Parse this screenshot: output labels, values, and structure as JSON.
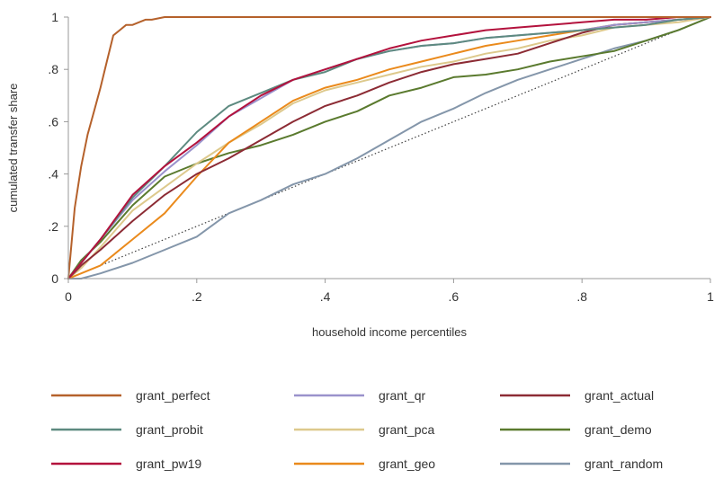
{
  "chart_data": {
    "type": "line",
    "title": "",
    "xlabel": "household income percentiles",
    "ylabel": "cumulated transfer share",
    "xlim": [
      0,
      1
    ],
    "ylim": [
      0,
      1
    ],
    "x_ticks": [
      0,
      0.2,
      0.4,
      0.6,
      0.8,
      1
    ],
    "x_tick_labels": [
      "0",
      ".2",
      ".4",
      ".6",
      ".8",
      "1"
    ],
    "y_ticks": [
      0,
      0.2,
      0.4,
      0.6,
      0.8,
      1
    ],
    "y_tick_labels": [
      "0",
      ".2",
      ".4",
      ".6",
      ".8",
      "1"
    ],
    "grid": false,
    "legend_position": "bottom",
    "reference_line": {
      "style": "dotted",
      "color": "#404040",
      "x": [
        0,
        1
      ],
      "y": [
        0,
        1
      ]
    },
    "series": [
      {
        "name": "grant_perfect",
        "color": "#b5612b",
        "x": [
          0,
          0.01,
          0.02,
          0.03,
          0.04,
          0.05,
          0.06,
          0.07,
          0.08,
          0.09,
          0.1,
          0.11,
          0.12,
          0.13,
          0.15,
          0.16,
          1
        ],
        "y": [
          0,
          0.27,
          0.43,
          0.55,
          0.64,
          0.73,
          0.83,
          0.93,
          0.95,
          0.97,
          0.97,
          0.98,
          0.99,
          0.99,
          1,
          1,
          1
        ]
      },
      {
        "name": "grant_qr",
        "color": "#9a92cc",
        "x": [
          0,
          0.02,
          0.05,
          0.1,
          0.15,
          0.2,
          0.25,
          0.3,
          0.35,
          0.4,
          0.45,
          0.5,
          0.55,
          0.6,
          0.65,
          0.7,
          0.75,
          0.8,
          0.85,
          0.9,
          0.95,
          1
        ],
        "y": [
          0,
          0.06,
          0.15,
          0.3,
          0.41,
          0.51,
          0.62,
          0.69,
          0.76,
          0.8,
          0.84,
          0.87,
          0.89,
          0.9,
          0.92,
          0.93,
          0.94,
          0.95,
          0.97,
          0.98,
          0.99,
          1
        ]
      },
      {
        "name": "grant_actual",
        "color": "#8c2b34",
        "x": [
          0,
          0.02,
          0.05,
          0.1,
          0.15,
          0.2,
          0.25,
          0.3,
          0.35,
          0.4,
          0.45,
          0.5,
          0.55,
          0.6,
          0.65,
          0.7,
          0.75,
          0.8,
          0.85,
          0.9,
          0.95,
          1
        ],
        "y": [
          0,
          0.05,
          0.11,
          0.22,
          0.32,
          0.4,
          0.46,
          0.53,
          0.6,
          0.66,
          0.7,
          0.75,
          0.79,
          0.82,
          0.84,
          0.86,
          0.9,
          0.94,
          0.97,
          0.98,
          0.99,
          1
        ]
      },
      {
        "name": "grant_probit",
        "color": "#5d8a80",
        "x": [
          0,
          0.02,
          0.05,
          0.1,
          0.15,
          0.2,
          0.25,
          0.3,
          0.35,
          0.4,
          0.45,
          0.5,
          0.55,
          0.6,
          0.65,
          0.7,
          0.75,
          0.8,
          0.85,
          0.9,
          0.95,
          1
        ],
        "y": [
          0,
          0.06,
          0.15,
          0.31,
          0.43,
          0.56,
          0.66,
          0.71,
          0.76,
          0.79,
          0.84,
          0.87,
          0.89,
          0.9,
          0.92,
          0.93,
          0.94,
          0.95,
          0.96,
          0.97,
          0.99,
          1
        ]
      },
      {
        "name": "grant_pca",
        "color": "#ddc98c",
        "x": [
          0,
          0.02,
          0.05,
          0.1,
          0.15,
          0.2,
          0.25,
          0.3,
          0.35,
          0.4,
          0.45,
          0.5,
          0.55,
          0.6,
          0.65,
          0.7,
          0.75,
          0.8,
          0.85,
          0.9,
          0.95,
          1
        ],
        "y": [
          0,
          0.04,
          0.12,
          0.26,
          0.35,
          0.44,
          0.52,
          0.59,
          0.67,
          0.72,
          0.75,
          0.78,
          0.81,
          0.83,
          0.86,
          0.88,
          0.91,
          0.93,
          0.96,
          0.97,
          0.98,
          1
        ]
      },
      {
        "name": "grant_demo",
        "color": "#5a7a2e",
        "x": [
          0,
          0.02,
          0.05,
          0.1,
          0.15,
          0.2,
          0.25,
          0.3,
          0.35,
          0.4,
          0.45,
          0.5,
          0.55,
          0.6,
          0.65,
          0.7,
          0.75,
          0.8,
          0.85,
          0.9,
          0.95,
          1
        ],
        "y": [
          0,
          0.07,
          0.14,
          0.28,
          0.39,
          0.44,
          0.48,
          0.51,
          0.55,
          0.6,
          0.64,
          0.7,
          0.73,
          0.77,
          0.78,
          0.8,
          0.83,
          0.85,
          0.87,
          0.91,
          0.95,
          1
        ]
      },
      {
        "name": "grant_pw19",
        "color": "#b3123d",
        "x": [
          0,
          0.02,
          0.05,
          0.1,
          0.15,
          0.2,
          0.25,
          0.3,
          0.35,
          0.4,
          0.45,
          0.5,
          0.55,
          0.6,
          0.65,
          0.7,
          0.75,
          0.8,
          0.85,
          0.9,
          0.95,
          1
        ],
        "y": [
          0,
          0.06,
          0.15,
          0.32,
          0.43,
          0.52,
          0.62,
          0.7,
          0.76,
          0.8,
          0.84,
          0.88,
          0.91,
          0.93,
          0.95,
          0.96,
          0.97,
          0.98,
          0.99,
          0.99,
          1,
          1
        ]
      },
      {
        "name": "grant_geo",
        "color": "#ea8a1c",
        "x": [
          0,
          0.02,
          0.05,
          0.1,
          0.15,
          0.2,
          0.25,
          0.3,
          0.35,
          0.4,
          0.45,
          0.5,
          0.55,
          0.6,
          0.65,
          0.7,
          0.75,
          0.8,
          0.85,
          0.9,
          0.95,
          1
        ],
        "y": [
          0,
          0.02,
          0.05,
          0.15,
          0.25,
          0.39,
          0.52,
          0.6,
          0.68,
          0.73,
          0.76,
          0.8,
          0.83,
          0.86,
          0.89,
          0.91,
          0.93,
          0.95,
          0.97,
          0.98,
          0.99,
          1
        ]
      },
      {
        "name": "grant_random",
        "color": "#8496aa",
        "x": [
          0,
          0.02,
          0.05,
          0.1,
          0.15,
          0.2,
          0.25,
          0.3,
          0.35,
          0.4,
          0.45,
          0.5,
          0.55,
          0.6,
          0.65,
          0.7,
          0.75,
          0.8,
          0.85,
          0.9,
          0.95,
          1
        ],
        "y": [
          0,
          0,
          0.02,
          0.06,
          0.11,
          0.16,
          0.25,
          0.3,
          0.36,
          0.4,
          0.46,
          0.53,
          0.6,
          0.65,
          0.71,
          0.76,
          0.8,
          0.84,
          0.88,
          0.91,
          0.95,
          1
        ]
      }
    ]
  }
}
